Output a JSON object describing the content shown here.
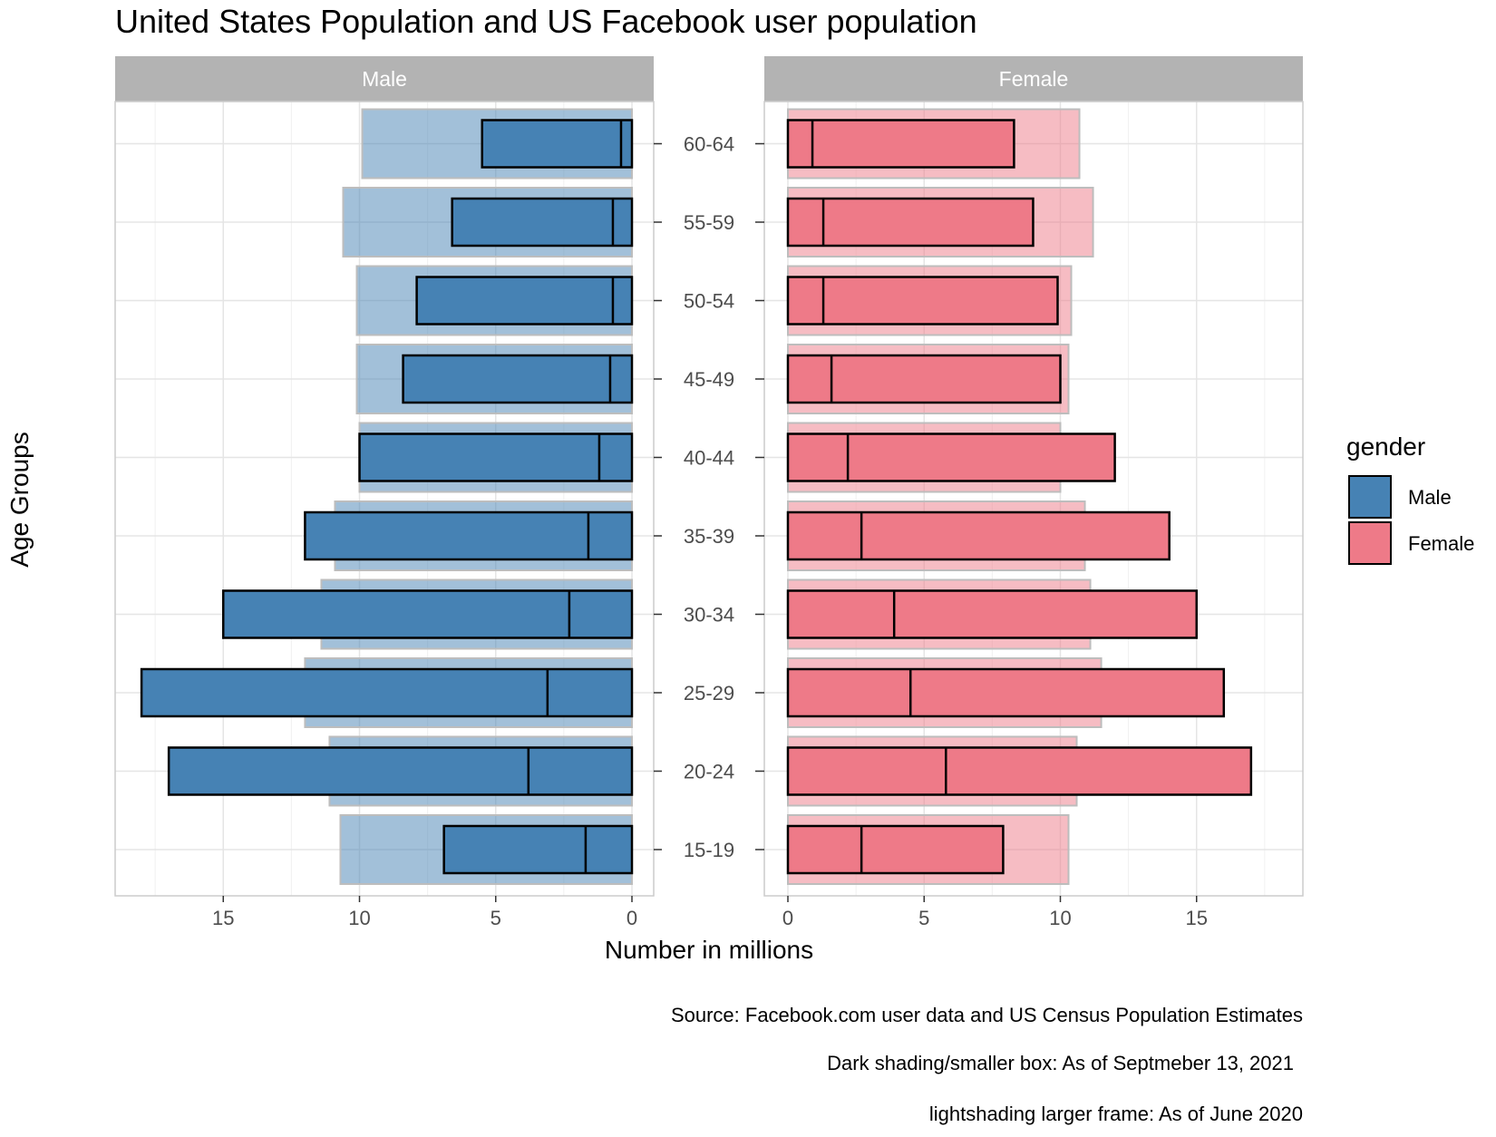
{
  "chart_data": {
    "type": "bar",
    "title": "United States Population and US Facebook user population",
    "xlabel": "Number in millions",
    "ylabel": "Age Groups",
    "categories": [
      "15-19",
      "20-24",
      "25-29",
      "30-34",
      "35-39",
      "40-44",
      "45-49",
      "50-54",
      "55-59",
      "60-64"
    ],
    "facets": [
      "Male",
      "Female"
    ],
    "xlim": [
      0,
      19
    ],
    "xticks": [
      0,
      5,
      10,
      15
    ],
    "legend": {
      "title": "gender",
      "entries": [
        "Male",
        "Female"
      ],
      "position": "right"
    },
    "colors": {
      "Male": "#4682b4",
      "Female": "#ee7a88",
      "strip_bg": "#b3b3b3",
      "grid": "#e5e5e5",
      "panel_border": "#cccccc"
    },
    "series": [
      {
        "gender": "Male",
        "description": "light shading larger frame",
        "values": [
          10.7,
          11.1,
          12.0,
          11.4,
          10.9,
          10.0,
          10.1,
          10.1,
          10.6,
          9.9
        ]
      },
      {
        "gender": "Male",
        "description": "dark shading smaller box",
        "values": [
          6.9,
          17.0,
          18.0,
          15.0,
          12.0,
          10.0,
          8.4,
          7.9,
          6.6,
          5.5
        ]
      },
      {
        "gender": "Male",
        "description": "inner divider",
        "values": [
          1.7,
          3.8,
          3.1,
          2.3,
          1.6,
          1.2,
          0.8,
          0.7,
          0.7,
          0.4
        ]
      },
      {
        "gender": "Female",
        "description": "light shading larger frame",
        "values": [
          10.3,
          10.6,
          11.5,
          11.1,
          10.9,
          10.0,
          10.3,
          10.4,
          11.2,
          10.7
        ]
      },
      {
        "gender": "Female",
        "description": "dark shading smaller box",
        "values": [
          7.9,
          17.0,
          16.0,
          15.0,
          14.0,
          12.0,
          10.0,
          9.9,
          9.0,
          8.3
        ]
      },
      {
        "gender": "Female",
        "description": "inner divider",
        "values": [
          2.7,
          5.8,
          4.5,
          3.9,
          2.7,
          2.2,
          1.6,
          1.3,
          1.3,
          0.9
        ]
      }
    ],
    "caption": [
      "Source: Facebook.com user data and US Census Population Estimates",
      "Dark shading/smaller box: As of Septmeber 13, 2021",
      "lightshading larger frame: As of June 2020"
    ]
  }
}
